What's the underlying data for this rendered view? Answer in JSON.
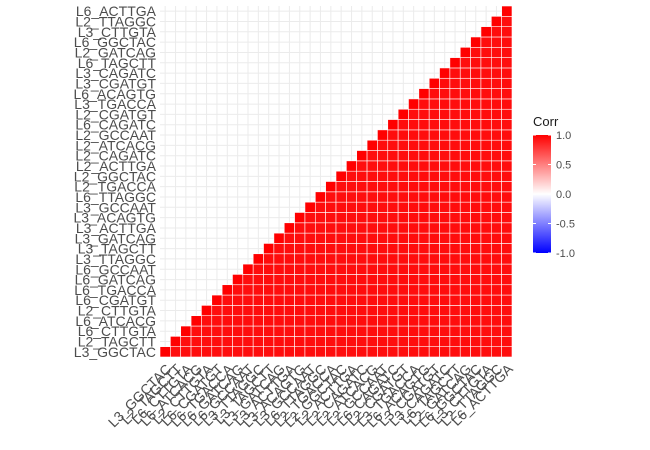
{
  "chart_data": {
    "type": "heatmap",
    "subtype": "correlation-upper-triangle",
    "variables": [
      "L3_GGCTAC",
      "L2_TAGCTT",
      "L6_CTTGTA",
      "L6_ATCACG",
      "L2_CTTGTA",
      "L6_CGATGT",
      "L6_TGACCA",
      "L6_GATCAG",
      "L6_GCCAAT",
      "L3_TTAGGC",
      "L3_TAGCTT",
      "L3_GATCAG",
      "L3_ACTTGA",
      "L3_ACAGTG",
      "L3_GCCAAT",
      "L6_TTAGGC",
      "L2_TGACCA",
      "L2_GGCTAC",
      "L2_ACTTGA",
      "L2_CAGATC",
      "L2_ATCACG",
      "L2_GCCAAT",
      "L6_CAGATC",
      "L2_CGATGT",
      "L3_TGACCA",
      "L6_ACAGTG",
      "L3_CGATGT",
      "L3_CAGATC",
      "L6_TAGCTT",
      "L2_GATCAG",
      "L6_GGCTAC",
      "L3_CTTGTA",
      "L2_TTAGGC",
      "L6_ACTTGA"
    ],
    "diagonal_value": 1.0,
    "off_diagonal_values": "all approximately 1.0 (uniform red), lower triangle blank",
    "legend": {
      "title": "Corr",
      "ticks": [
        "1.0",
        "0.5",
        "0.0",
        "-0.5",
        "-1.0"
      ],
      "tick_values": [
        1.0,
        0.5,
        0.0,
        -0.5,
        -1.0
      ],
      "colors": {
        "high": "#FF0000",
        "mid": "#FFFFFF",
        "low": "#0000FF"
      },
      "range": [
        -1,
        1
      ]
    },
    "cell_value_estimate": 0.95,
    "background": "#FFFFFF",
    "grid_color": "#EBEBEB"
  }
}
